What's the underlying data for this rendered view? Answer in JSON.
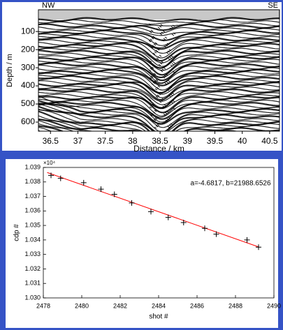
{
  "chart_data": [
    {
      "type": "seismic",
      "left_label": "NW",
      "right_label": "SE",
      "xlabel": "Distance / km",
      "ylabel": "Depth / m",
      "xlim": [
        36.28,
        40.68
      ],
      "ylim": [
        -20,
        650
      ],
      "y_inverted": true,
      "xticks": [
        36.5,
        37,
        37.5,
        38,
        38.5,
        39,
        39.5,
        40,
        40.5
      ],
      "yticks": [
        100,
        200,
        300,
        400,
        500,
        600
      ]
    },
    {
      "type": "scatter",
      "xlabel": "shot #",
      "ylabel": "cdp #",
      "annotation": "a=-4.6817, b=21988.6526",
      "y_multiplier": "×10⁴",
      "x": [
        2478.4,
        2478.9,
        2480.1,
        2481,
        2481.7,
        2482.6,
        2483.6,
        2484.5,
        2485.3,
        2486.4,
        2487,
        2488.6,
        2489.2
      ],
      "values": [
        10384.5,
        10382.5,
        10379.5,
        10375,
        10371.5,
        10365.5,
        10359.5,
        10355.5,
        10352,
        10348,
        10344,
        10340,
        10335
      ],
      "color": "#000000",
      "fit_line": {
        "x": [
          2478.2,
          2489.2
        ],
        "values": [
          10386.5,
          10335.2
        ],
        "color": "#ff0000"
      },
      "xlim": [
        2478,
        2490
      ],
      "ylim": [
        10300,
        10390
      ],
      "xticks": [
        2478,
        2480,
        2482,
        2484,
        2486,
        2488,
        2490
      ],
      "yticks": [
        {
          "value": 10300,
          "label": "1.030"
        },
        {
          "value": 10310,
          "label": "1.031"
        },
        {
          "value": 10320,
          "label": "1.032"
        },
        {
          "value": 10330,
          "label": "1.033"
        },
        {
          "value": 10340,
          "label": "1.034"
        },
        {
          "value": 10350,
          "label": "1.035"
        },
        {
          "value": 10360,
          "label": "1.036"
        },
        {
          "value": 10370,
          "label": "1.037"
        },
        {
          "value": 10380,
          "label": "1.038"
        },
        {
          "value": 10390,
          "label": "1.039"
        }
      ]
    }
  ]
}
